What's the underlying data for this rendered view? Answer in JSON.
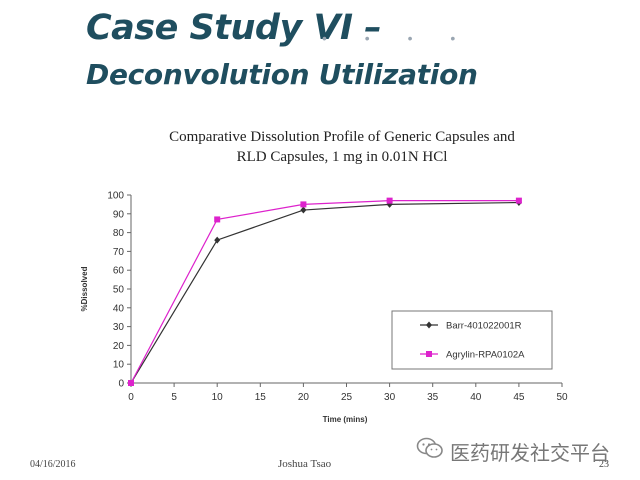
{
  "slide": {
    "title": "Case Study VI –",
    "subtitle": "Deconvolution Utilization",
    "decorative_dots": "• • • •",
    "footer": {
      "date": "04/16/2016",
      "author": "Joshua Tsao",
      "page": "23"
    },
    "watermark": {
      "icon": "wechat-icon",
      "text": "医药研发社交平台"
    }
  },
  "chart_data": {
    "type": "line",
    "title": "Comparative Dissolution Profile of Generic Capsules and",
    "subtitle": "RLD Capsules, 1 mg  in 0.01N HCl",
    "xlabel": "Time (mins)",
    "ylabel": "%Dissolved",
    "xlim": [
      0,
      50
    ],
    "ylim": [
      0,
      100
    ],
    "xticks": [
      0,
      5,
      10,
      15,
      20,
      25,
      30,
      35,
      40,
      45,
      50
    ],
    "yticks": [
      0,
      10,
      20,
      30,
      40,
      50,
      60,
      70,
      80,
      90,
      100
    ],
    "grid": false,
    "legend_position": "lower-right",
    "series": [
      {
        "name": "Barr-401022001R",
        "color": "#333333",
        "marker": "diamond",
        "x": [
          0,
          10,
          20,
          30,
          45
        ],
        "y": [
          0,
          76,
          92,
          95,
          96
        ]
      },
      {
        "name": "Agrylin-RPA0102A",
        "color": "#dd22cc",
        "marker": "square",
        "x": [
          0,
          10,
          20,
          30,
          45
        ],
        "y": [
          0,
          87,
          95,
          97,
          97
        ]
      }
    ]
  }
}
